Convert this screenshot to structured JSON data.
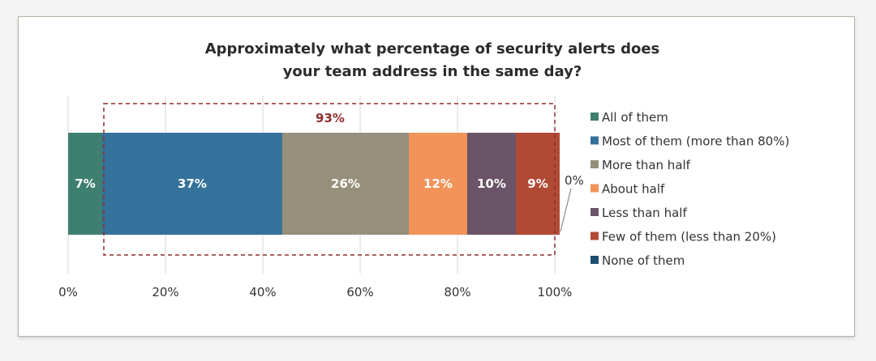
{
  "chart_data": {
    "type": "bar",
    "orientation": "horizontal-stacked-100",
    "title": "Approximately what percentage of security alerts does your team address in the same day?",
    "title_lines": [
      "Approximately what percentage of security alerts does",
      "your team address in the same day?"
    ],
    "xlim": [
      0,
      100
    ],
    "ticks": [
      0,
      20,
      40,
      60,
      80,
      100
    ],
    "tick_labels": [
      "0%",
      "20%",
      "40%",
      "60%",
      "80%",
      "100%"
    ],
    "grid": true,
    "legend_position": "right",
    "series": [
      {
        "name": "All of them",
        "value": 7,
        "label": "7%",
        "color": "#3e7f6f"
      },
      {
        "name": "Most of them (more than 80%)",
        "value": 37,
        "label": "37%",
        "color": "#35729b"
      },
      {
        "name": "More than half",
        "value": 26,
        "label": "26%",
        "color": "#968f7b"
      },
      {
        "name": "About half",
        "value": 12,
        "label": "12%",
        "color": "#f2935a"
      },
      {
        "name": "Less than half",
        "value": 10,
        "label": "10%",
        "color": "#6b5468"
      },
      {
        "name": "Few of them (less than 20%)",
        "value": 9,
        "label": "9%",
        "color": "#b04a35"
      },
      {
        "name": "None of them",
        "value": 0,
        "label": "0%",
        "color": "#1d4e6e"
      }
    ],
    "annotation": {
      "text": "93%",
      "from": 7,
      "to": 100,
      "color": "#8e2d2d"
    }
  }
}
